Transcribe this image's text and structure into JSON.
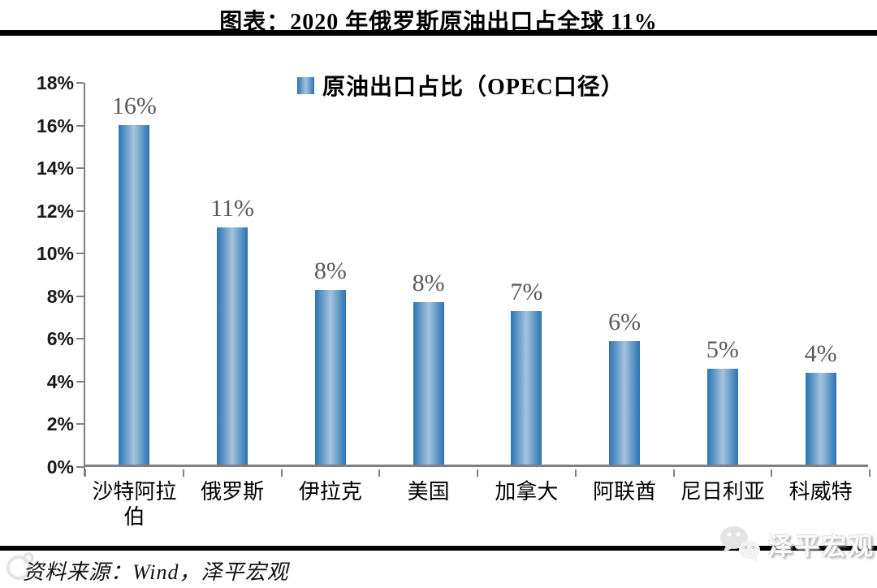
{
  "title": "图表：2020 年俄罗斯原油出口占全球 11%",
  "legend": {
    "label": "原油出口占比（OPEC口径）"
  },
  "source_note": "资料来源：Wind，泽平宏观",
  "watermark": {
    "brand": "泽平宏观",
    "icon": "wechat-bubbles-icon"
  },
  "colors": {
    "bar_edge": "#2b74b3",
    "bar_center": "#a6c3dc",
    "axis": "#808080",
    "data_label": "#595959",
    "rule": "#000000"
  },
  "chart_data": {
    "type": "bar",
    "title": "图表：2020 年俄罗斯原油出口占全球 11%",
    "legend_entries": [
      "原油出口占比（OPEC口径）"
    ],
    "legend_position": "top-center",
    "categories": [
      "沙特阿拉伯",
      "俄罗斯",
      "伊拉克",
      "美国",
      "加拿大",
      "阿联酋",
      "尼日利亚",
      "科威特"
    ],
    "values": [
      15.9,
      11.1,
      8.2,
      7.6,
      7.2,
      5.8,
      4.5,
      4.3
    ],
    "data_labels": [
      "16%",
      "11%",
      "8%",
      "8%",
      "7%",
      "6%",
      "5%",
      "4%"
    ],
    "xlabel": "",
    "ylabel": "",
    "ylim": [
      0,
      18
    ],
    "ytick_step": 2,
    "ytick_labels": [
      "0%",
      "2%",
      "4%",
      "6%",
      "8%",
      "10%",
      "12%",
      "14%",
      "16%",
      "18%"
    ],
    "grid": false
  }
}
